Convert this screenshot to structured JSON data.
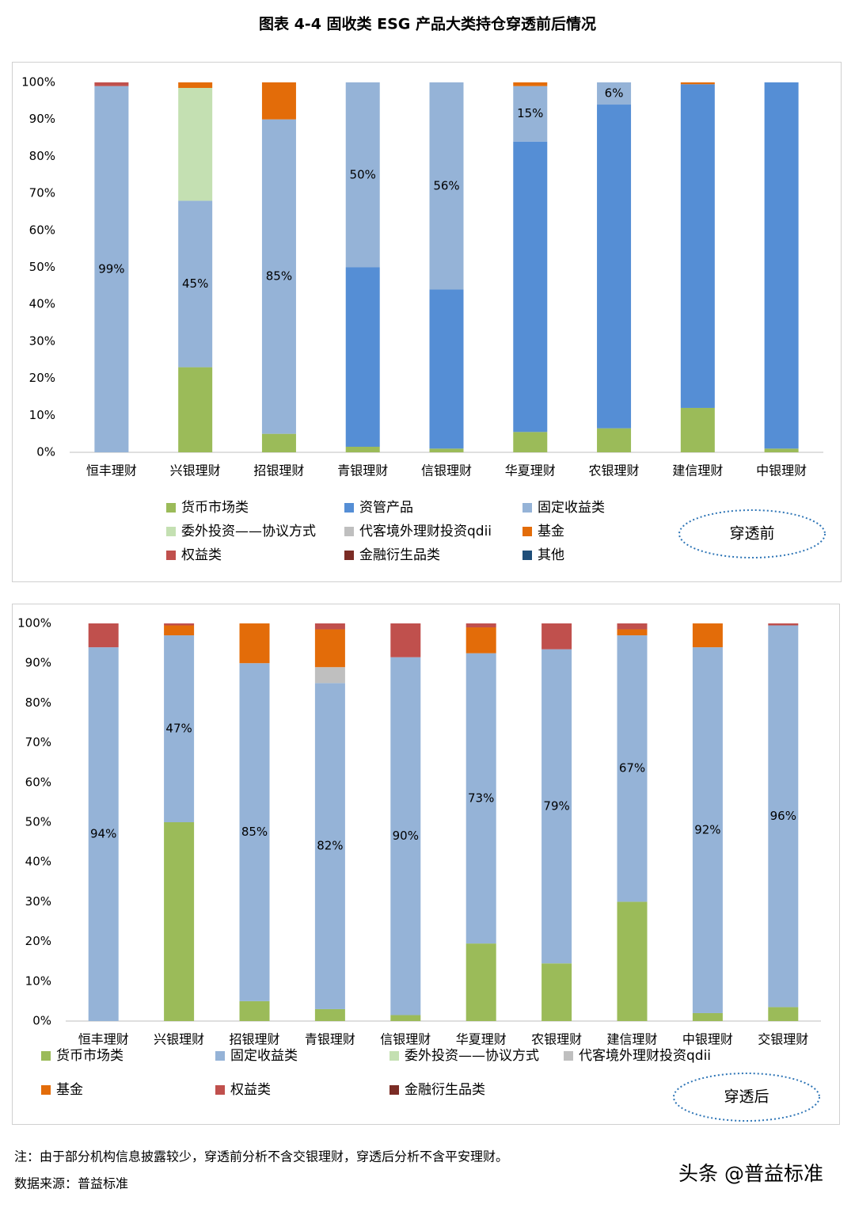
{
  "title": "图表 4-4   固收类 ESG 产品大类持仓穿透前后情况",
  "chart_data": [
    {
      "type": "bar",
      "stacked": true,
      "annotation": "穿透前",
      "categories": [
        "恒丰理财",
        "兴银理财",
        "招银理财",
        "青银理财",
        "信银理财",
        "华夏理财",
        "农银理财",
        "建信理财",
        "中银理财"
      ],
      "ylim": [
        0,
        100
      ],
      "yticks": [
        {
          "value": 0,
          "label": "0%"
        },
        {
          "value": 10,
          "label": "10%"
        },
        {
          "value": 20,
          "label": "20%"
        },
        {
          "value": 30,
          "label": "30%"
        },
        {
          "value": 40,
          "label": "40%"
        },
        {
          "value": 50,
          "label": "50%"
        },
        {
          "value": 60,
          "label": "60%"
        },
        {
          "value": 70,
          "label": "70%"
        },
        {
          "value": 80,
          "label": "80%"
        },
        {
          "value": 90,
          "label": "90%"
        },
        {
          "value": 100,
          "label": "100%"
        }
      ],
      "grid": false,
      "series": [
        {
          "name": "货币市场类",
          "color": "#9bbb59",
          "values": [
            0,
            23,
            5,
            1.5,
            1,
            5.5,
            6.5,
            12,
            1
          ]
        },
        {
          "name": "资管产品",
          "color": "#558ed5",
          "values": [
            0,
            0,
            0,
            48.5,
            43,
            78.5,
            87.5,
            87.5,
            99
          ]
        },
        {
          "name": "固定收益类",
          "color": "#95b3d7",
          "values": [
            99,
            45,
            85,
            50,
            56,
            15,
            6,
            0,
            0
          ],
          "value_labels": [
            "99%",
            "45%",
            "85%",
            "50%",
            "56%",
            "15%",
            "6%",
            null,
            null
          ]
        },
        {
          "name": "委外投资——协议方式",
          "color": "#c4e0b2",
          "values": [
            0,
            30.5,
            0,
            0,
            0,
            0,
            0,
            0,
            0
          ]
        },
        {
          "name": "代客境外理财投资qdii",
          "color": "#bfbfbf",
          "values": [
            0,
            0,
            0,
            0,
            0,
            0,
            0,
            0,
            0
          ]
        },
        {
          "name": "基金",
          "color": "#e36c09",
          "values": [
            0,
            1.5,
            10,
            0,
            0,
            1,
            0,
            0.5,
            0
          ]
        },
        {
          "name": "权益类",
          "color": "#c0504d",
          "values": [
            1,
            0,
            0,
            0,
            0,
            0,
            0,
            0,
            0
          ]
        },
        {
          "name": "金融衍生品类",
          "color": "#7b2c25",
          "values": [
            0,
            0,
            0,
            0,
            0,
            0,
            0,
            0,
            0
          ]
        },
        {
          "name": "其他",
          "color": "#1f4e79",
          "values": [
            0,
            0,
            0,
            0,
            0,
            0,
            0,
            0,
            0
          ]
        }
      ]
    },
    {
      "type": "bar",
      "stacked": true,
      "annotation": "穿透后",
      "categories": [
        "恒丰理财",
        "兴银理财",
        "招银理财",
        "青银理财",
        "信银理财",
        "华夏理财",
        "农银理财",
        "建信理财",
        "中银理财",
        "交银理财"
      ],
      "ylim": [
        0,
        100
      ],
      "yticks": [
        {
          "value": 0,
          "label": "0%"
        },
        {
          "value": 10,
          "label": "10%"
        },
        {
          "value": 20,
          "label": "20%"
        },
        {
          "value": 30,
          "label": "30%"
        },
        {
          "value": 40,
          "label": "40%"
        },
        {
          "value": 50,
          "label": "50%"
        },
        {
          "value": 60,
          "label": "60%"
        },
        {
          "value": 70,
          "label": "70%"
        },
        {
          "value": 80,
          "label": "80%"
        },
        {
          "value": 90,
          "label": "90%"
        },
        {
          "value": 100,
          "label": "100%"
        }
      ],
      "grid": false,
      "series": [
        {
          "name": "货币市场类",
          "color": "#9bbb59",
          "values": [
            0,
            50,
            5,
            3,
            1.5,
            19.5,
            14.5,
            30,
            2,
            3.5
          ]
        },
        {
          "name": "固定收益类",
          "color": "#95b3d7",
          "values": [
            94,
            47,
            85,
            82,
            90,
            73,
            79,
            67,
            92,
            96
          ],
          "value_labels": [
            "94%",
            "47%",
            "85%",
            "82%",
            "90%",
            "73%",
            "79%",
            "67%",
            "92%",
            "96%"
          ]
        },
        {
          "name": "委外投资——协议方式",
          "color": "#c4e0b2",
          "values": [
            0,
            0,
            0,
            0,
            0,
            0,
            0,
            0,
            0,
            0
          ]
        },
        {
          "name": "代客境外理财投资qdii",
          "color": "#bfbfbf",
          "values": [
            0,
            0,
            0,
            4,
            0,
            0,
            0,
            0,
            0,
            0
          ]
        },
        {
          "name": "基金",
          "color": "#e36c09",
          "values": [
            0,
            2.5,
            10,
            9.5,
            0,
            6.5,
            0,
            1.5,
            6,
            0
          ]
        },
        {
          "name": "权益类",
          "color": "#c0504d",
          "values": [
            6,
            0.5,
            0,
            1.5,
            8.5,
            1,
            6.5,
            1.5,
            0,
            0.5
          ]
        },
        {
          "name": "金融衍生品类",
          "color": "#7b2c25",
          "values": [
            0,
            0,
            0,
            0,
            0,
            0,
            0,
            0,
            0,
            0
          ]
        }
      ]
    }
  ],
  "note": "注：由于部分机构信息披露较少，穿透前分析不含交银理财，穿透后分析不含平安理财。",
  "source": "数据来源：普益标准",
  "watermark": "头条 @普益标准"
}
